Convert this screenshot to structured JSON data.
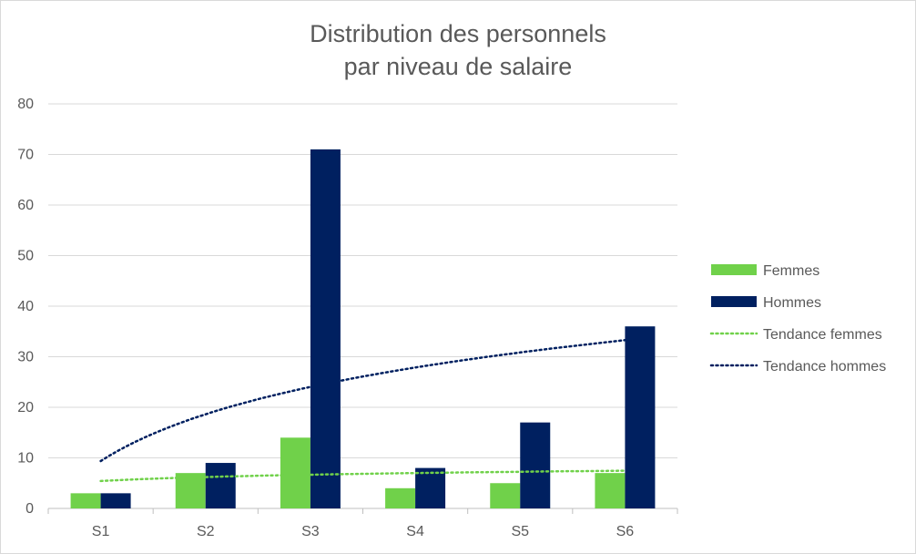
{
  "chart_data": {
    "type": "bar",
    "title": "Distribution des personnels par niveau de salaire",
    "title_lines": [
      "Distribution des personnels",
      "par niveau de salaire"
    ],
    "categories": [
      "S1",
      "S2",
      "S3",
      "S4",
      "S5",
      "S6"
    ],
    "series": [
      {
        "name": "Femmes",
        "values": [
          3,
          7,
          14,
          4,
          5,
          7
        ],
        "color": "#70d14a"
      },
      {
        "name": "Hommes",
        "values": [
          3,
          9,
          71,
          8,
          17,
          36
        ],
        "color": "#002060"
      }
    ],
    "trendlines": [
      {
        "name": "Tendance femmes",
        "type": "logarithmic",
        "series": "Femmes",
        "color": "#70d14a",
        "style": "dotted"
      },
      {
        "name": "Tendance hommes",
        "type": "logarithmic",
        "series": "Hommes",
        "color": "#002060",
        "style": "dotted"
      }
    ],
    "ylim": [
      0,
      80
    ],
    "yticks": [
      0,
      10,
      20,
      30,
      40,
      50,
      60,
      70,
      80
    ],
    "grid": true,
    "legend_position": "right",
    "xlabel": "",
    "ylabel": ""
  }
}
